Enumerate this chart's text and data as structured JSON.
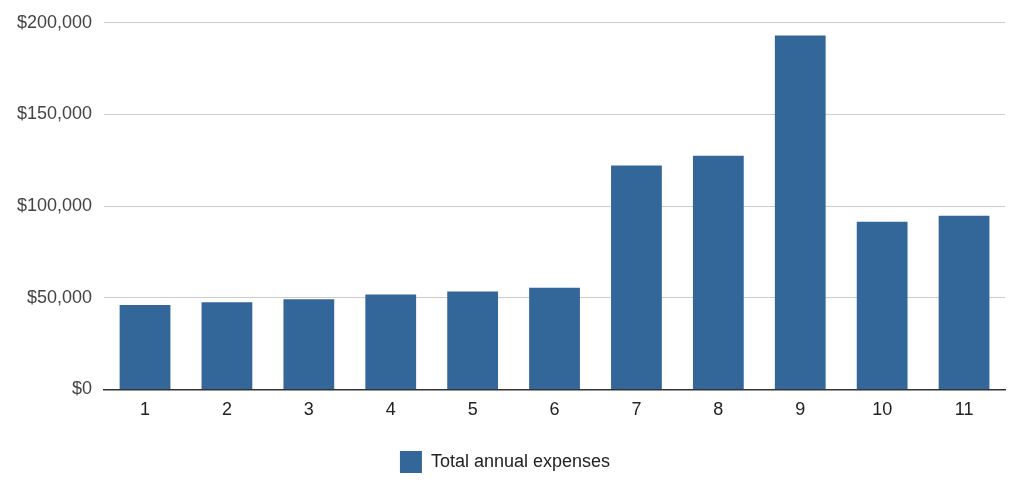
{
  "chart_data": {
    "type": "bar",
    "categories": [
      "1",
      "2",
      "3",
      "4",
      "5",
      "6",
      "7",
      "8",
      "9",
      "10",
      "11"
    ],
    "series": [
      {
        "name": "Total annual expenses",
        "color": "#336699",
        "values": [
          46000,
          47600,
          49200,
          51800,
          53400,
          55500,
          122200,
          127500,
          193100,
          91500,
          94700
        ]
      }
    ],
    "ylim": [
      0,
      200000
    ],
    "yticks": [
      {
        "value": 0,
        "label": "$0"
      },
      {
        "value": 50000,
        "label": "$50,000"
      },
      {
        "value": 100000,
        "label": "$100,000"
      },
      {
        "value": 150000,
        "label": "$150,000"
      },
      {
        "value": 200000,
        "label": "$200,000"
      }
    ],
    "grid": "y",
    "legend": "bottom"
  }
}
